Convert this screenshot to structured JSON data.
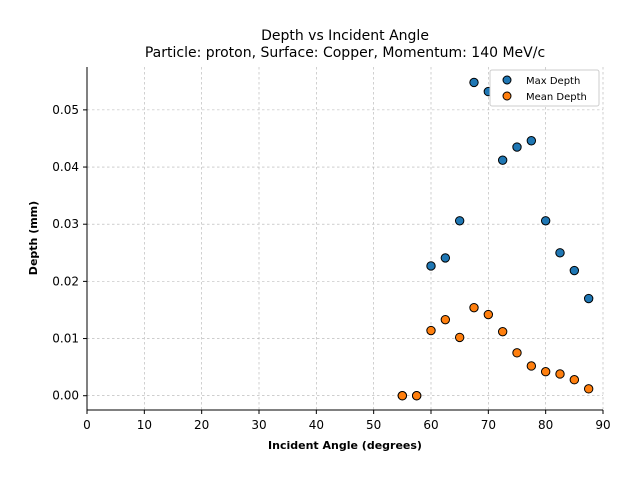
{
  "chart_data": {
    "type": "scatter",
    "title": "Depth vs Incident Angle",
    "subtitle": "Particle: proton, Surface: Copper, Momentum: 140 MeV/c",
    "xlabel": "Incident Angle (degrees)",
    "ylabel": "Depth (mm)",
    "xlim": [
      0,
      90
    ],
    "ylim": [
      -0.0025,
      0.0575
    ],
    "xticks": [
      0,
      10,
      20,
      30,
      40,
      50,
      60,
      70,
      80,
      90
    ],
    "xtick_labels": [
      "0",
      "10",
      "20",
      "30",
      "40",
      "50",
      "60",
      "70",
      "80",
      "90"
    ],
    "yticks": [
      0.0,
      0.01,
      0.02,
      0.03,
      0.04,
      0.05
    ],
    "ytick_labels": [
      "0.00",
      "0.01",
      "0.02",
      "0.03",
      "0.04",
      "0.05"
    ],
    "grid": true,
    "legend_position": "top-right",
    "series": [
      {
        "name": "Max Depth",
        "color": "#1f77b4",
        "x": [
          55.0,
          57.5,
          60.0,
          62.5,
          65.0,
          67.5,
          70.0,
          72.5,
          75.0,
          77.5,
          80.0,
          82.5,
          85.0,
          87.5
        ],
        "y": [
          0.0,
          0.0,
          0.0227,
          0.0241,
          0.0306,
          0.0548,
          0.0532,
          0.0412,
          0.0435,
          0.0446,
          0.0306,
          0.025,
          0.0219,
          0.017
        ]
      },
      {
        "name": "Mean Depth",
        "color": "#ff7f0e",
        "x": [
          55.0,
          57.5,
          60.0,
          62.5,
          65.0,
          67.5,
          70.0,
          72.5,
          75.0,
          77.5,
          80.0,
          82.5,
          85.0,
          87.5
        ],
        "y": [
          0.0,
          0.0,
          0.0114,
          0.0133,
          0.0102,
          0.0154,
          0.0142,
          0.0112,
          0.0075,
          0.0052,
          0.0042,
          0.0038,
          0.0028,
          0.0012
        ]
      }
    ]
  }
}
